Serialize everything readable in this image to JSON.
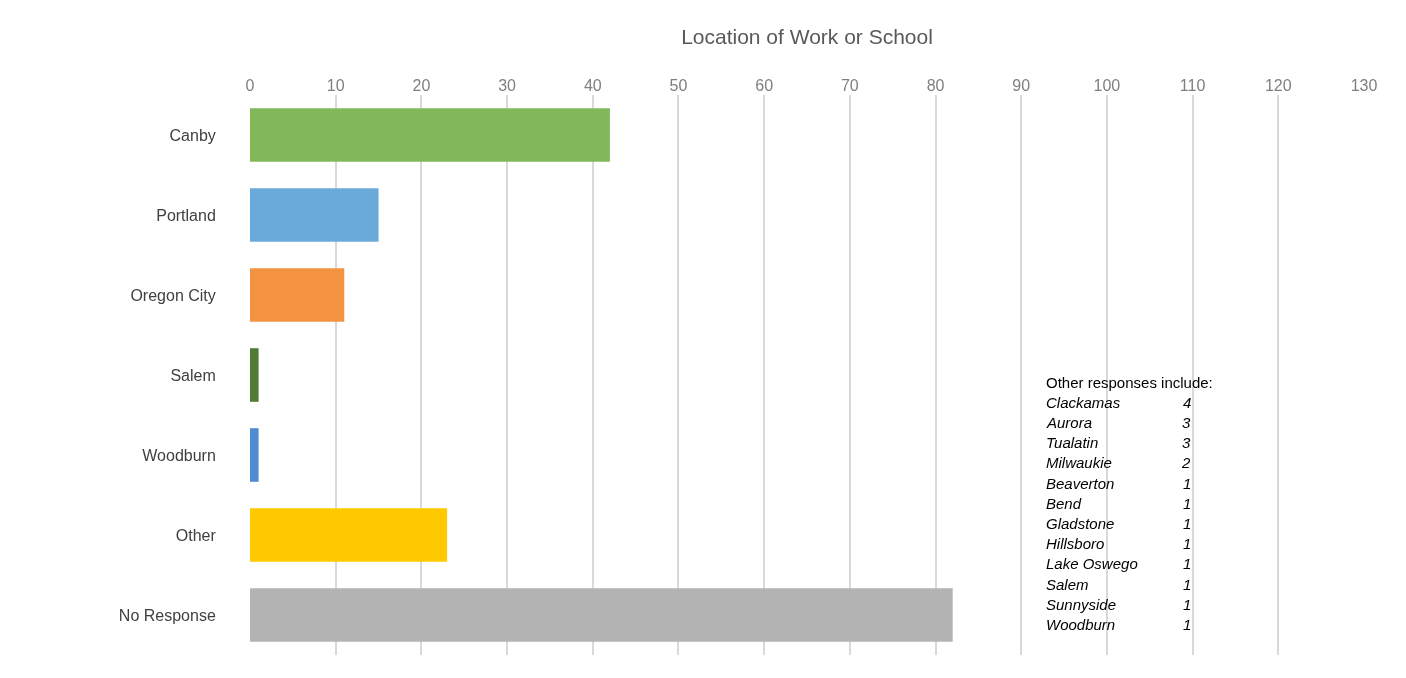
{
  "chart_data": {
    "type": "bar",
    "orientation": "horizontal",
    "title": "Location of Work or School",
    "categories": [
      "Canby",
      "Portland",
      "Oregon City",
      "Salem",
      "Woodburn",
      "Other",
      "No Response"
    ],
    "values": [
      42,
      15,
      11,
      1,
      1,
      23,
      82
    ],
    "colors": [
      "#82b85a",
      "#6aaadb",
      "#f39240",
      "#507a35",
      "#4f8bd0",
      "#ffc900",
      "#b3b3b3"
    ],
    "xlim": [
      0,
      130
    ],
    "xticks": [
      0,
      10,
      20,
      30,
      40,
      50,
      60,
      70,
      80,
      90,
      100,
      110,
      120,
      130
    ],
    "grid": "x",
    "legend": false,
    "annotations": [
      "Other responses include:",
      "Clackamas",
      "4",
      "Aurora",
      "3",
      "Tualatin",
      "3",
      "Milwaukie",
      "2",
      "Beaverton",
      "1",
      "Bend",
      "1",
      "Gladstone",
      "1",
      "Hillsboro",
      "1",
      "Lake Oswego",
      "1",
      "Salem",
      "1",
      "Sunnyside",
      "1",
      "Woodburn",
      "1"
    ]
  }
}
